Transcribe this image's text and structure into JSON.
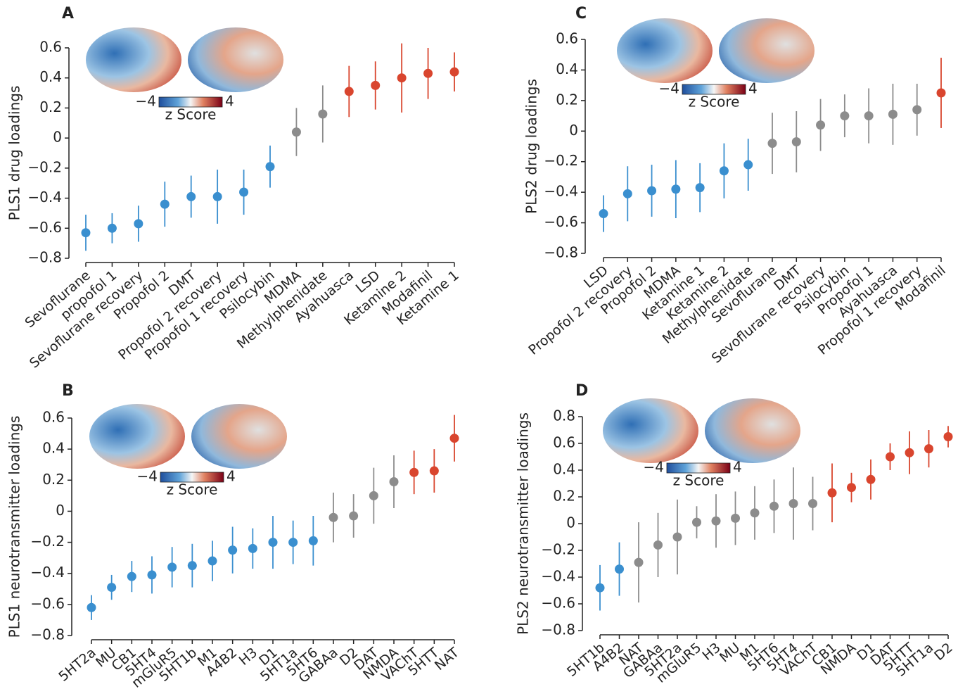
{
  "chart_data": [
    {
      "type": "errorbar",
      "panel_label": "A",
      "ylabel": "PLS1 drug loadings",
      "categories": [
        "Sevoflurane",
        "propofol 1",
        "Sevoflurane recovery",
        "Propofol 2",
        "DMT",
        "Propofol 2 recovery",
        "Propofol 1 recovery",
        "Psilocybin",
        "MDMA",
        "Methylphenidate",
        "Ayahuasca",
        "LSD",
        "Ketamine 2",
        "Modafinil",
        "Ketamine 1"
      ],
      "values": [
        -0.63,
        -0.6,
        -0.57,
        -0.44,
        -0.39,
        -0.39,
        -0.36,
        -0.19,
        0.04,
        0.16,
        0.31,
        0.35,
        0.4,
        0.43,
        0.44
      ],
      "errors": [
        0.12,
        0.1,
        0.12,
        0.15,
        0.14,
        0.18,
        0.15,
        0.14,
        0.16,
        0.19,
        0.17,
        0.16,
        0.23,
        0.17,
        0.13
      ],
      "colors": [
        "#3a8fcf",
        "#3a8fcf",
        "#3a8fcf",
        "#3a8fcf",
        "#3a8fcf",
        "#3a8fcf",
        "#3a8fcf",
        "#3a8fcf",
        "#8c8c8c",
        "#8c8c8c",
        "#d9452e",
        "#d9452e",
        "#d9452e",
        "#d9452e",
        "#d9452e"
      ],
      "ylim": [
        -0.8,
        0.6
      ],
      "yticks": [
        {
          "value": -0.8,
          "label": "−0.8"
        },
        {
          "value": -0.6,
          "label": "−0.6"
        },
        {
          "value": -0.4,
          "label": "−0.4"
        },
        {
          "value": -0.2,
          "label": "−0.2"
        },
        0,
        0.2,
        0.4,
        0.6
      ],
      "colorbar": {
        "ticks": [
          {
            "value": -4,
            "label": "−4"
          },
          4
        ],
        "label": "z Score"
      }
    },
    {
      "type": "errorbar",
      "panel_label": "B",
      "ylabel": "PLS1 neurotransmitter loadings",
      "categories": [
        "5HT2a",
        "MU",
        "CB1",
        "5HT4",
        "mGluR5",
        "5HT1b",
        "M1",
        "A4B2",
        "H3",
        "D1",
        "5HT1a",
        "5HT6",
        "GABAa",
        "D2",
        "DAT",
        "NMDA",
        "VAChT",
        "5HTT",
        "NAT"
      ],
      "values": [
        -0.62,
        -0.49,
        -0.42,
        -0.41,
        -0.36,
        -0.35,
        -0.32,
        -0.25,
        -0.24,
        -0.2,
        -0.2,
        -0.19,
        -0.04,
        -0.03,
        0.1,
        0.19,
        0.25,
        0.26,
        0.47
      ],
      "errors": [
        0.08,
        0.08,
        0.1,
        0.12,
        0.13,
        0.14,
        0.13,
        0.15,
        0.13,
        0.17,
        0.14,
        0.16,
        0.16,
        0.14,
        0.18,
        0.17,
        0.14,
        0.14,
        0.15
      ],
      "colors": [
        "#3a8fcf",
        "#3a8fcf",
        "#3a8fcf",
        "#3a8fcf",
        "#3a8fcf",
        "#3a8fcf",
        "#3a8fcf",
        "#3a8fcf",
        "#3a8fcf",
        "#3a8fcf",
        "#3a8fcf",
        "#3a8fcf",
        "#8c8c8c",
        "#8c8c8c",
        "#8c8c8c",
        "#8c8c8c",
        "#d9452e",
        "#d9452e",
        "#d9452e"
      ],
      "ylim": [
        -0.8,
        0.6
      ],
      "yticks": [
        {
          "value": -0.8,
          "label": "−0.8"
        },
        {
          "value": -0.6,
          "label": "−0.6"
        },
        {
          "value": -0.4,
          "label": "−0.4"
        },
        {
          "value": -0.2,
          "label": "−0.2"
        },
        0,
        0.2,
        0.4,
        0.6
      ],
      "colorbar": {
        "ticks": [
          {
            "value": -4,
            "label": "−4"
          },
          4
        ],
        "label": "z Score"
      }
    },
    {
      "type": "errorbar",
      "panel_label": "C",
      "ylabel": "PLS2 drug loadings",
      "categories": [
        "LSD",
        "Propofol 2 recovery",
        "Propofol 2",
        "MDMA",
        "Ketamine 1",
        "Ketamine 2",
        "Methylphenidate",
        "Sevoflurane",
        "DMT",
        "Sevoflurane recovery",
        "Psilocybin",
        "Propofol 1",
        "Ayahuasca",
        "Propofol 1 recovery",
        "Modafinil"
      ],
      "values": [
        -0.54,
        -0.41,
        -0.39,
        -0.38,
        -0.37,
        -0.26,
        -0.22,
        -0.08,
        -0.07,
        0.04,
        0.1,
        0.1,
        0.11,
        0.14,
        0.25
      ],
      "errors": [
        0.12,
        0.18,
        0.17,
        0.19,
        0.16,
        0.18,
        0.17,
        0.2,
        0.2,
        0.17,
        0.14,
        0.18,
        0.2,
        0.17,
        0.23
      ],
      "colors": [
        "#3a8fcf",
        "#3a8fcf",
        "#3a8fcf",
        "#3a8fcf",
        "#3a8fcf",
        "#3a8fcf",
        "#3a8fcf",
        "#8c8c8c",
        "#8c8c8c",
        "#8c8c8c",
        "#8c8c8c",
        "#8c8c8c",
        "#8c8c8c",
        "#8c8c8c",
        "#d9452e"
      ],
      "ylim": [
        -0.8,
        0.6
      ],
      "yticks": [
        {
          "value": -0.8,
          "label": "−0.8"
        },
        {
          "value": -0.6,
          "label": "−0.6"
        },
        {
          "value": -0.4,
          "label": "−0.4"
        },
        {
          "value": -0.2,
          "label": "−0.2"
        },
        0,
        0.2,
        0.4,
        0.6
      ],
      "colorbar": {
        "ticks": [
          {
            "value": -4,
            "label": "−4"
          },
          4
        ],
        "label": "z Score"
      }
    },
    {
      "type": "errorbar",
      "panel_label": "D",
      "ylabel": "PLS2 neurotransmitter loadings",
      "categories": [
        "5HT1b",
        "A4B2",
        "NAT",
        "GABAa",
        "5HT2a",
        "mGluR5",
        "H3",
        "MU",
        "M1",
        "5HT6",
        "5HT4",
        "VAChT",
        "CB1",
        "NMDA",
        "D1",
        "DAT",
        "5HTT",
        "5HT1a",
        "D2"
      ],
      "values": [
        -0.48,
        -0.34,
        -0.29,
        -0.16,
        -0.1,
        0.01,
        0.02,
        0.04,
        0.08,
        0.13,
        0.15,
        0.15,
        0.23,
        0.27,
        0.33,
        0.5,
        0.53,
        0.56,
        0.65
      ],
      "errors": [
        0.17,
        0.2,
        0.3,
        0.24,
        0.28,
        0.12,
        0.2,
        0.2,
        0.2,
        0.2,
        0.27,
        0.2,
        0.22,
        0.11,
        0.15,
        0.1,
        0.16,
        0.14,
        0.08
      ],
      "colors": [
        "#3a8fcf",
        "#3a8fcf",
        "#8c8c8c",
        "#8c8c8c",
        "#8c8c8c",
        "#8c8c8c",
        "#8c8c8c",
        "#8c8c8c",
        "#8c8c8c",
        "#8c8c8c",
        "#8c8c8c",
        "#8c8c8c",
        "#d9452e",
        "#d9452e",
        "#d9452e",
        "#d9452e",
        "#d9452e",
        "#d9452e",
        "#d9452e"
      ],
      "ylim": [
        -0.8,
        0.8
      ],
      "yticks": [
        {
          "value": -0.8,
          "label": "−0.8"
        },
        {
          "value": -0.6,
          "label": "−0.6"
        },
        {
          "value": -0.4,
          "label": "−0.4"
        },
        {
          "value": -0.2,
          "label": "−0.2"
        },
        0,
        0.2,
        0.4,
        0.6,
        0.8
      ],
      "colorbar": {
        "ticks": [
          {
            "value": -4,
            "label": "−4"
          },
          4
        ],
        "label": "z Score"
      }
    }
  ]
}
